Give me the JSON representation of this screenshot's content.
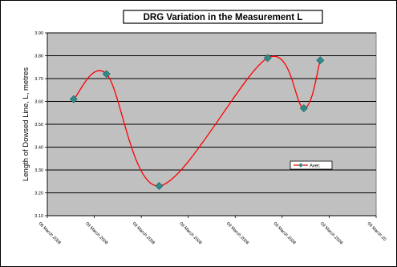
{
  "chart_data": {
    "type": "line",
    "title": "DRG  Variation in the Measurement  L",
    "xlabel": "",
    "ylabel": "Length of Dowsed Line, L, metres",
    "ylim": [
      3.1,
      3.9
    ],
    "y_ticks": [
      "3.10",
      "3.20",
      "3.30",
      "3.40",
      "3.50",
      "3.60",
      "3.70",
      "3.80",
      "3.90"
    ],
    "x_tick_labels": [
      "08 March 2008",
      "09 March 2008",
      "09 March 2008",
      "09 March 2008",
      "09 March 2008",
      "09 March 2008",
      "09 March 2008",
      "09 March 20"
    ],
    "grid": "horizontal",
    "legend_position": "right",
    "series": [
      {
        "name": "Aver.",
        "color": "#ff0000",
        "marker_color": "#2f8a8a",
        "x_positions": [
          0.08,
          0.18,
          0.34,
          0.67,
          0.78,
          0.83
        ],
        "values": [
          3.61,
          3.72,
          3.23,
          3.79,
          3.57,
          3.78
        ]
      }
    ],
    "colors": {
      "plot_background": "#c0c0c0",
      "gridline": "#000000",
      "series_line": "#ff0000",
      "marker": "#2f8a8a"
    }
  }
}
